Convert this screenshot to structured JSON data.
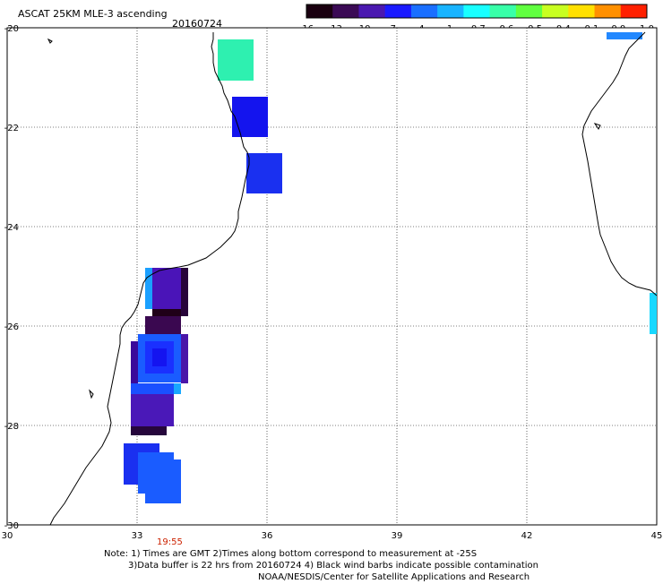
{
  "header": {
    "title": "ASCAT 25KM MLE-3 ascending",
    "date": "20160724"
  },
  "colorbar": {
    "labels": [
      "-16",
      "-13",
      "-10",
      "-7",
      "-4",
      "-1",
      "-0.7",
      "-0.6",
      "-0.5",
      "-0.4",
      "-0.1",
      "0.0",
      "1.0"
    ],
    "colors": [
      "#1a0010",
      "#3b0a55",
      "#4a18b0",
      "#1a1aff",
      "#1a6fff",
      "#18b4ff",
      "#18ffff",
      "#38ffa8",
      "#60ff40",
      "#c8ff20",
      "#ffe000",
      "#ff9000",
      "#ff2000"
    ]
  },
  "map": {
    "x_ticks": [
      "30",
      "33",
      "36",
      "39",
      "42",
      "45"
    ],
    "y_ticks": [
      "-20",
      "-22",
      "-24",
      "-26",
      "-28",
      "-30"
    ],
    "pass_time": "19:55"
  },
  "notes": {
    "line1": "Note: 1) Times are GMT 2)Times along bottom correspond to measurement at -25S",
    "line2": "3)Data buffer is 22 hrs from 20160724 4) Black wind barbs indicate possible contamination",
    "line3": "NOAA/NESDIS/Center for Satellite Applications and Research"
  }
}
